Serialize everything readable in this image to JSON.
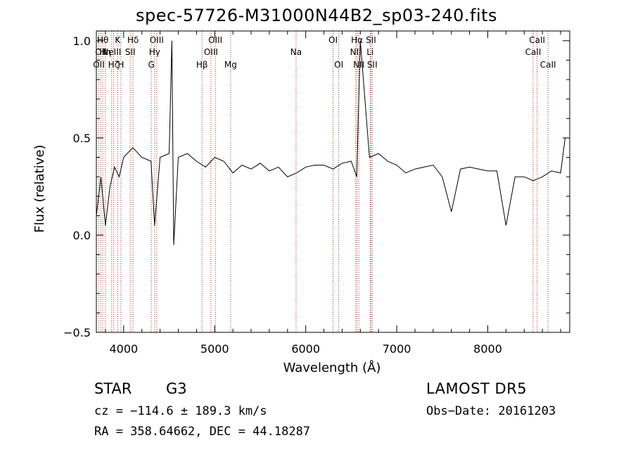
{
  "chart_data": {
    "type": "line",
    "title": "spec-57726-M31000N44B2_sp03-240.fits",
    "xlabel": "Wavelength (Å)",
    "ylabel": "Flux (relative)",
    "xlim": [
      3700,
      8900
    ],
    "ylim": [
      -0.5,
      1.05
    ],
    "x_ticks": [
      4000,
      5000,
      6000,
      7000,
      8000
    ],
    "y_ticks": [
      -0.5,
      0.0,
      0.5,
      1.0
    ],
    "y_tick_labels": [
      "−0.5",
      "0.0",
      "0.5",
      "1.0"
    ],
    "grid": false,
    "line_color": "#000000",
    "marker_color": "#b22222",
    "series": [
      {
        "x": [
          3700,
          3750,
          3800,
          3850,
          3900,
          3950,
          4000,
          4100,
          4200,
          4300,
          4340,
          4400,
          4500,
          4530,
          4550,
          4600,
          4700,
          4800,
          4900,
          5000,
          5100,
          5200,
          5300,
          5400,
          5500,
          5600,
          5700,
          5800,
          5900,
          6000,
          6100,
          6200,
          6300,
          6400,
          6500,
          6560,
          6600,
          6700,
          6800,
          6900,
          7000,
          7100,
          7200,
          7300,
          7400,
          7500,
          7600,
          7700,
          7800,
          7900,
          8000,
          8100,
          8200,
          8300,
          8400,
          8500,
          8600,
          8700,
          8800,
          8850
        ],
        "y": [
          0.1,
          0.3,
          0.05,
          0.25,
          0.35,
          0.3,
          0.4,
          0.45,
          0.4,
          0.38,
          0.05,
          0.4,
          0.42,
          1.0,
          -0.05,
          0.4,
          0.42,
          0.38,
          0.35,
          0.4,
          0.38,
          0.32,
          0.36,
          0.34,
          0.37,
          0.33,
          0.35,
          0.3,
          0.32,
          0.35,
          0.36,
          0.36,
          0.34,
          0.37,
          0.38,
          0.3,
          1.0,
          0.4,
          0.42,
          0.38,
          0.36,
          0.32,
          0.34,
          0.35,
          0.36,
          0.3,
          0.12,
          0.34,
          0.35,
          0.34,
          0.33,
          0.33,
          0.05,
          0.3,
          0.3,
          0.28,
          0.3,
          0.33,
          0.32,
          0.5
        ]
      }
    ],
    "lines": [
      {
        "w": 3727,
        "label": "OII",
        "row": 2
      },
      {
        "w": 3750,
        "label": "OII",
        "row": 1
      },
      {
        "w": 3771,
        "label": "Hθ",
        "row": 0
      },
      {
        "w": 3798,
        "label": "Hη",
        "row": 1
      },
      {
        "w": 3868,
        "label": "NeIII",
        "row": 1
      },
      {
        "w": 3889,
        "label": "Hζ",
        "row": 2
      },
      {
        "w": 3934,
        "label": "K",
        "row": 0
      },
      {
        "w": 3970,
        "label": "H",
        "row": 2
      },
      {
        "w": 4072,
        "label": "SII",
        "row": 1
      },
      {
        "w": 4102,
        "label": "Hδ",
        "row": 0
      },
      {
        "w": 4304,
        "label": "G",
        "row": 2
      },
      {
        "w": 4340,
        "label": "Hγ",
        "row": 1
      },
      {
        "w": 4363,
        "label": "OIII",
        "row": 0
      },
      {
        "w": 4861,
        "label": "Hβ",
        "row": 2
      },
      {
        "w": 4959,
        "label": "OIII",
        "row": 1
      },
      {
        "w": 5007,
        "label": "OIII",
        "row": 0
      },
      {
        "w": 5175,
        "label": "Mg",
        "row": 2
      },
      {
        "w": 5894,
        "label": "Na",
        "row": 1
      },
      {
        "w": 6300,
        "label": "OI",
        "row": 0
      },
      {
        "w": 6363,
        "label": "OI",
        "row": 2
      },
      {
        "w": 6548,
        "label": "NII",
        "row": 1
      },
      {
        "w": 6563,
        "label": "Hα",
        "row": 0
      },
      {
        "w": 6583,
        "label": "NII",
        "row": 2
      },
      {
        "w": 6708,
        "label": "Li",
        "row": 1
      },
      {
        "w": 6717,
        "label": "SII",
        "row": 0
      },
      {
        "w": 6731,
        "label": "SII",
        "row": 2
      },
      {
        "w": 8498,
        "label": "CaII",
        "row": 1
      },
      {
        "w": 8542,
        "label": "CaII",
        "row": 0
      },
      {
        "w": 8662,
        "label": "CaII",
        "row": 2
      }
    ]
  },
  "footer": {
    "object_class": "STAR",
    "subclass": "G3",
    "survey": "LAMOST  DR5",
    "cz": "cz = −114.6 ± 189.3 km/s",
    "obs_date": "Obs−Date: 20161203",
    "radec": "RA = 358.64662, DEC =  44.18287"
  }
}
